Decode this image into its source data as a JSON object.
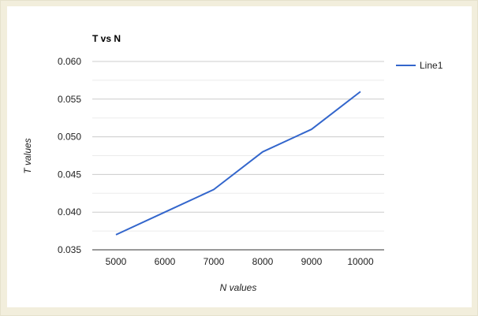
{
  "chart_data": {
    "type": "line",
    "title": "T vs N",
    "xlabel": "N values",
    "ylabel": "T values",
    "x": [
      5000,
      6000,
      7000,
      8000,
      9000,
      10000
    ],
    "x_tick_labels": [
      "5000",
      "6000",
      "7000",
      "8000",
      "9000",
      "10000"
    ],
    "y_tick_values": [
      0.035,
      0.04,
      0.045,
      0.05,
      0.055,
      0.06
    ],
    "y_tick_labels": [
      "0.035",
      "0.040",
      "0.045",
      "0.050",
      "0.055",
      "0.060"
    ],
    "ylim": [
      0.035,
      0.06
    ],
    "xlim": [
      5000,
      10000
    ],
    "grid": true,
    "legend_position": "right",
    "series": [
      {
        "name": "Line1",
        "color": "#3366cc",
        "values": [
          0.037,
          0.04,
          0.043,
          0.048,
          0.051,
          0.056
        ]
      }
    ]
  }
}
